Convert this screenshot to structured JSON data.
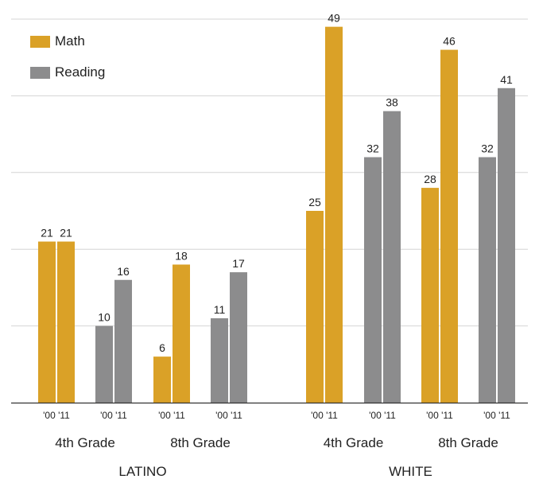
{
  "chart_data": {
    "type": "bar",
    "legend_position": "top-left",
    "grid": true,
    "ylim": [
      0,
      50
    ],
    "colors": {
      "math": "#DAA127",
      "reading": "#8C8C8D"
    },
    "legend": [
      {
        "key": "math",
        "label": "Math"
      },
      {
        "key": "reading",
        "label": "Reading"
      }
    ],
    "groups": [
      {
        "name": "LATINO",
        "grades": [
          {
            "label": "4th Grade",
            "subjects": [
              {
                "key": "math",
                "years": [
                  "'00",
                  "'11"
                ],
                "values": [
                  21,
                  21
                ]
              },
              {
                "key": "reading",
                "years": [
                  "'00",
                  "'11"
                ],
                "values": [
                  10,
                  16
                ]
              }
            ]
          },
          {
            "label": "8th Grade",
            "subjects": [
              {
                "key": "math",
                "years": [
                  "'00",
                  "'11"
                ],
                "values": [
                  6,
                  18
                ]
              },
              {
                "key": "reading",
                "years": [
                  "'00",
                  "'11"
                ],
                "values": [
                  11,
                  17
                ]
              }
            ]
          }
        ]
      },
      {
        "name": "WHITE",
        "grades": [
          {
            "label": "4th Grade",
            "subjects": [
              {
                "key": "math",
                "years": [
                  "'00",
                  "'11"
                ],
                "values": [
                  25,
                  49
                ]
              },
              {
                "key": "reading",
                "years": [
                  "'00",
                  "'11"
                ],
                "values": [
                  32,
                  38
                ]
              }
            ]
          },
          {
            "label": "8th Grade",
            "subjects": [
              {
                "key": "math",
                "years": [
                  "'00",
                  "'11"
                ],
                "values": [
                  28,
                  46
                ]
              },
              {
                "key": "reading",
                "years": [
                  "'00",
                  "'11"
                ],
                "values": [
                  32,
                  41
                ]
              }
            ]
          }
        ]
      }
    ]
  }
}
